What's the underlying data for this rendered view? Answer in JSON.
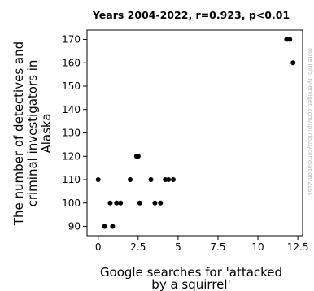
{
  "chart_data": {
    "type": "scatter",
    "title": "Years 2004-2022, r=0.923, p<0.01",
    "xlabel_lines": [
      "Google searches for 'attacked",
      "by a squirrel'"
    ],
    "ylabel_lines": [
      "The number of detectives and",
      "criminal investigators in",
      "Alaska"
    ],
    "xlim": [
      -0.7,
      12.8
    ],
    "ylim": [
      86,
      174
    ],
    "x_ticks": [
      0,
      2.5,
      5,
      7.5,
      10,
      12.5
    ],
    "x_tick_labels": [
      "0",
      "2.5",
      "5",
      "7.5",
      "10",
      "12.5"
    ],
    "y_ticks": [
      90,
      100,
      110,
      120,
      130,
      140,
      150,
      160,
      170
    ],
    "y_tick_labels": [
      "90",
      "100",
      "110",
      "120",
      "130",
      "140",
      "150",
      "160",
      "170"
    ],
    "grid": false,
    "legend": "none",
    "point_color": "#000000",
    "points": [
      {
        "x": 0.0,
        "y": 110
      },
      {
        "x": 0.4,
        "y": 90
      },
      {
        "x": 0.75,
        "y": 100
      },
      {
        "x": 0.9,
        "y": 90
      },
      {
        "x": 1.15,
        "y": 100
      },
      {
        "x": 1.4,
        "y": 100
      },
      {
        "x": 2.0,
        "y": 110
      },
      {
        "x": 2.4,
        "y": 120
      },
      {
        "x": 2.5,
        "y": 120
      },
      {
        "x": 2.6,
        "y": 100
      },
      {
        "x": 3.3,
        "y": 110
      },
      {
        "x": 3.55,
        "y": 100
      },
      {
        "x": 3.9,
        "y": 100
      },
      {
        "x": 4.2,
        "y": 110
      },
      {
        "x": 4.4,
        "y": 110
      },
      {
        "x": 4.7,
        "y": 110
      },
      {
        "x": 11.8,
        "y": 170
      },
      {
        "x": 12.0,
        "y": 170
      },
      {
        "x": 12.2,
        "y": 160
      }
    ]
  },
  "watermark": "More info: tylervigen.com/spurious/correlation/2161"
}
